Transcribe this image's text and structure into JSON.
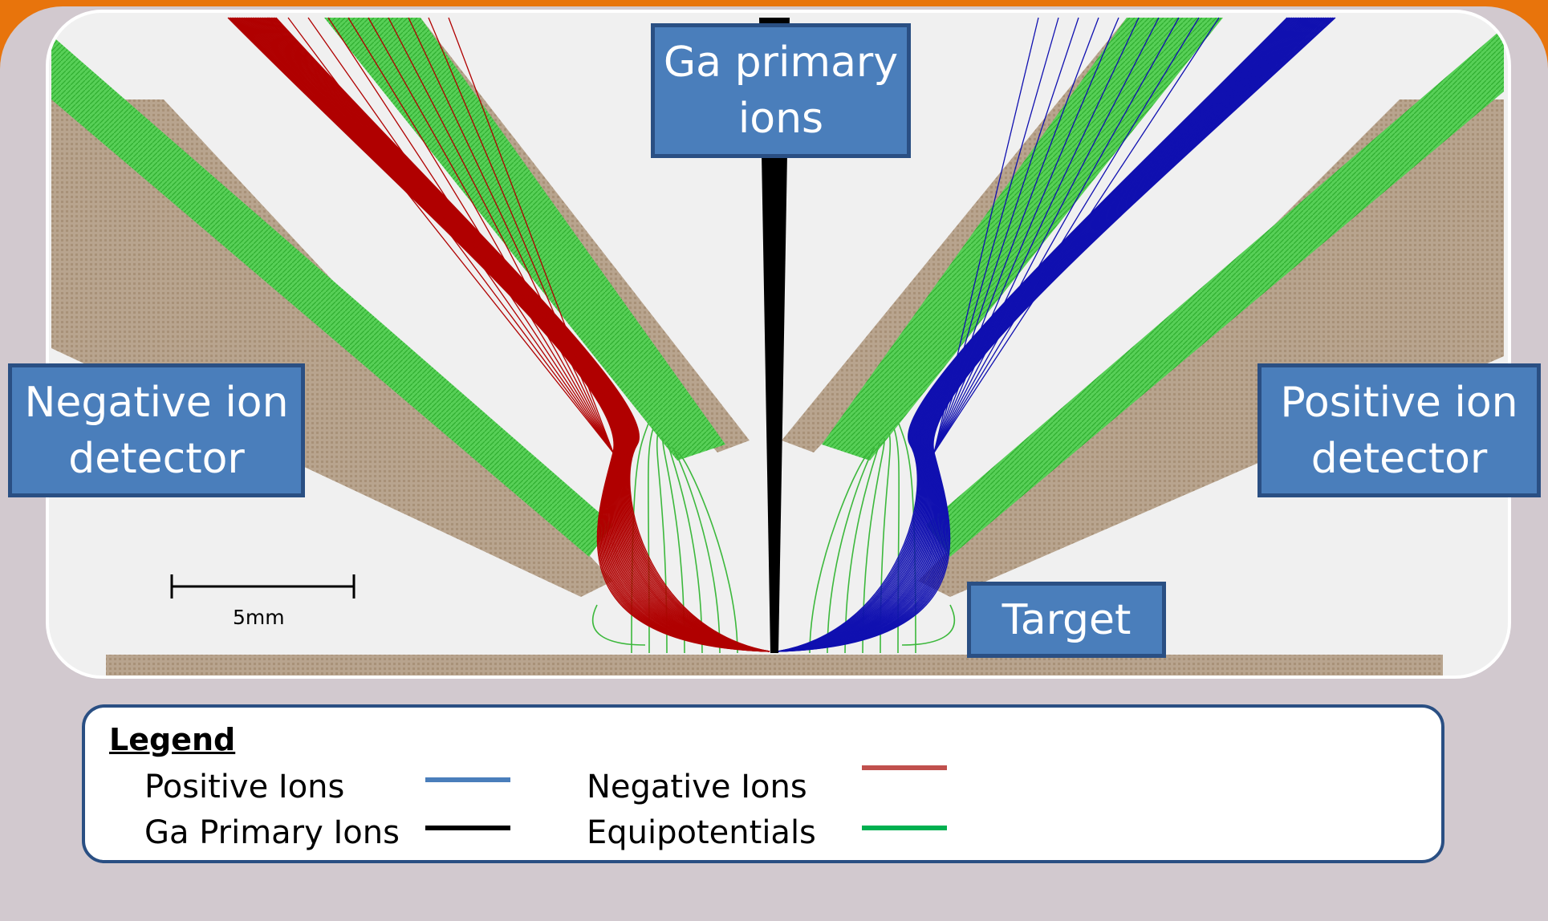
{
  "labels": {
    "ga_primary": "Ga primary\nions",
    "negative_detector": "Negative ion\ndetector",
    "positive_detector": "Positive  ion\ndetector",
    "target": "Target"
  },
  "scale_bar": {
    "label": "5mm"
  },
  "legend": {
    "title": "Legend",
    "items": [
      {
        "label": "Positive Ions",
        "color": "#4a7ebb"
      },
      {
        "label": "Ga Primary Ions",
        "color": "#000000"
      },
      {
        "label": "Negative Ions",
        "color": "#c0504d"
      },
      {
        "label": "Equipotentials",
        "color": "#00b050"
      }
    ]
  },
  "colors": {
    "frame_orange": "#e8740c",
    "frame_gray": "#d2c9cf",
    "electrode_tan": "#b3a08a",
    "equipotential_green": "#2fbf2f",
    "negative_ion_red": "#c00000",
    "positive_ion_blue": "#0000b0",
    "box_blue": "#4a7ebb",
    "box_border": "#2a4f83"
  }
}
